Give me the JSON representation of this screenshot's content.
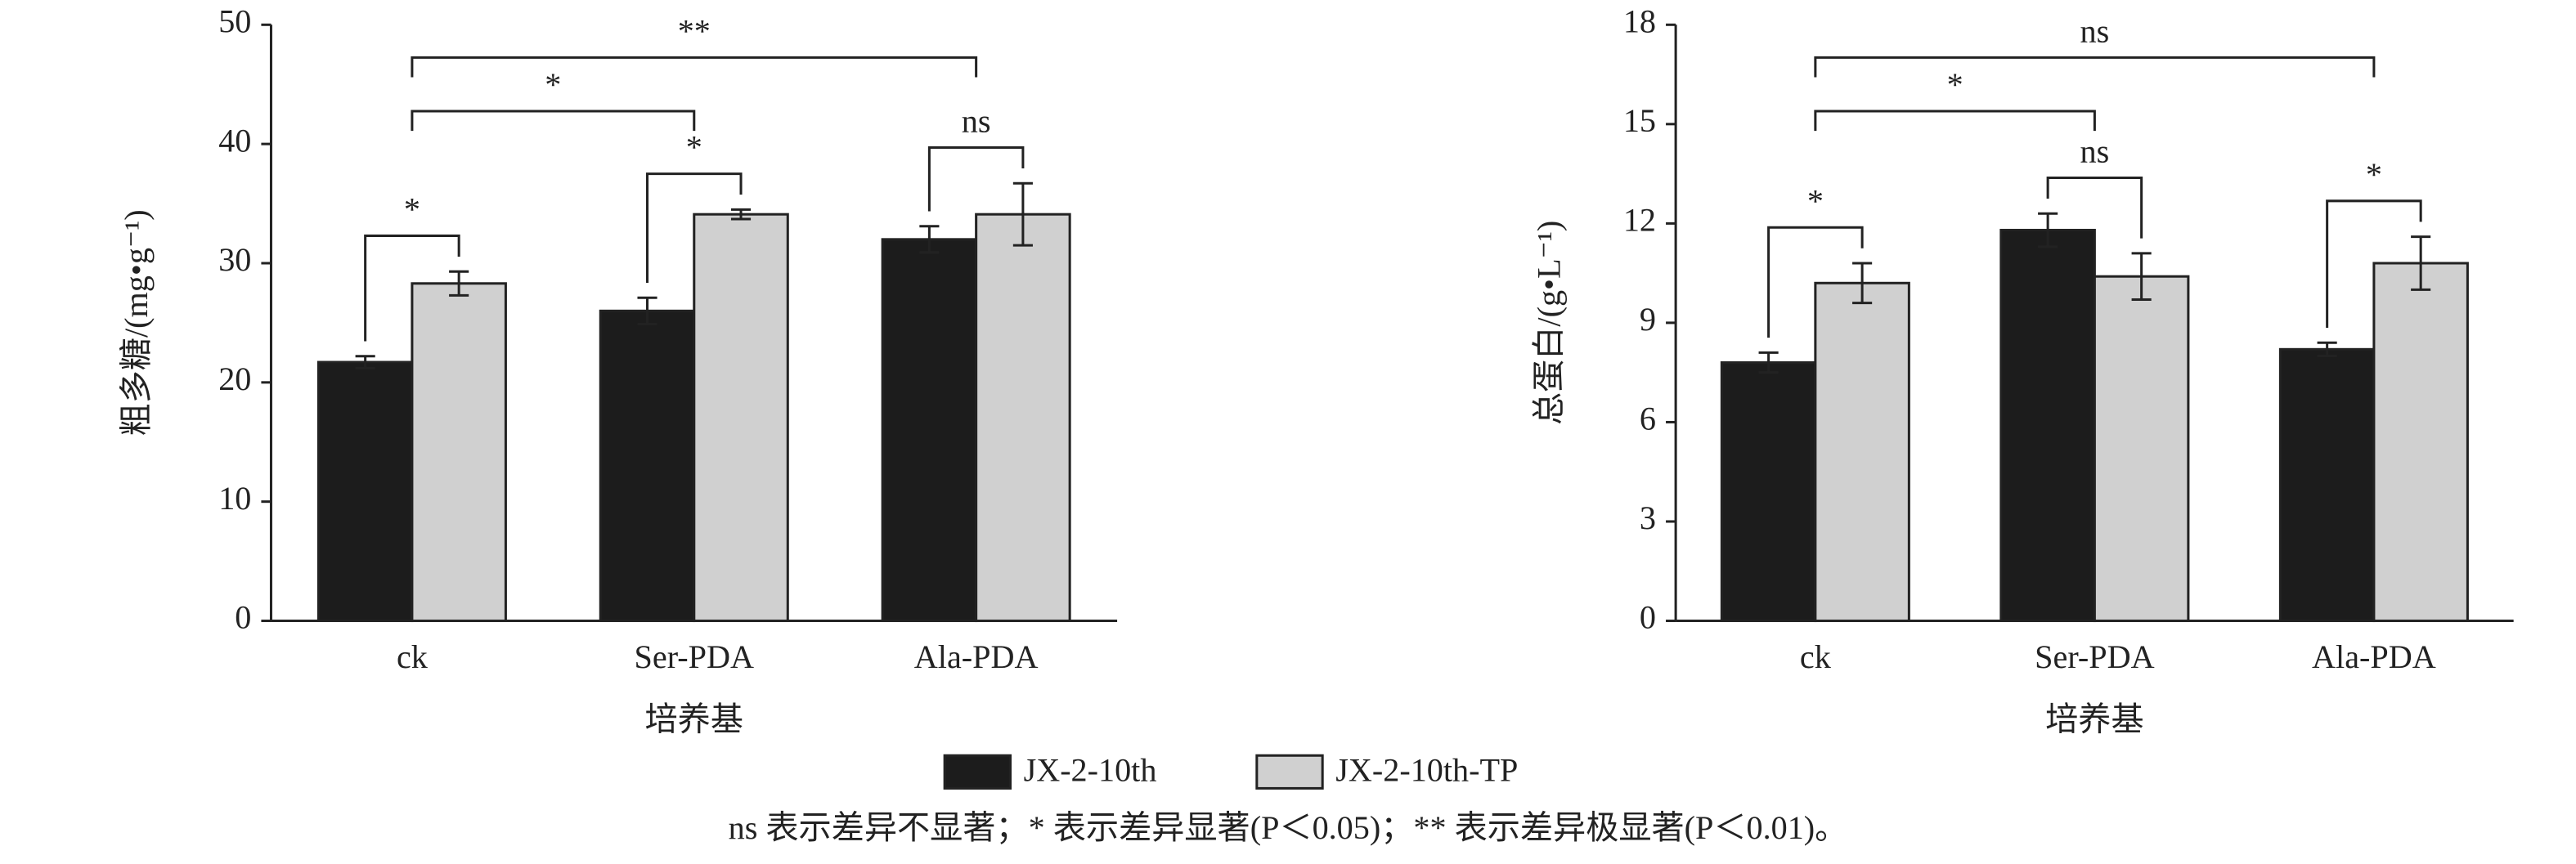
{
  "legend": {
    "entries": [
      {
        "name": "JX-2-10th",
        "color": "#1c1c1c"
      },
      {
        "name": "JX-2-10th-TP",
        "color": "#d0d0d0"
      }
    ]
  },
  "note": "ns 表示差异不显著；* 表示差异显著(P＜0.05)；** 表示差异极显著(P＜0.01)。",
  "chart_data": [
    {
      "type": "bar",
      "y_label": "粗多糖/(mg•g⁻¹)",
      "x_label": "培养基",
      "categories": [
        "ck",
        "Ser-PDA",
        "Ala-PDA"
      ],
      "series": [
        {
          "color": "#1c1c1c",
          "values": [
            21.7,
            26,
            32
          ],
          "errors": [
            0.5,
            1.1,
            1.1
          ]
        },
        {
          "color": "#d0d0d0",
          "values": [
            28.3,
            34.1,
            34.1
          ],
          "errors": [
            1,
            0.4,
            2.6
          ]
        }
      ],
      "ylim": [
        0,
        50
      ],
      "yticks": [
        0,
        10,
        20,
        30,
        40,
        50
      ],
      "annotations": [
        {
          "label": "*",
          "from": {
            "category": 0,
            "series": 0
          },
          "to": {
            "category": 0,
            "series": 1
          }
        },
        {
          "label": "*",
          "from": {
            "category": 1,
            "series": 0
          },
          "to": {
            "category": 1,
            "series": 1
          }
        },
        {
          "label": "ns",
          "from": {
            "category": 2,
            "series": 0
          },
          "to": {
            "category": 2,
            "series": 1
          }
        },
        {
          "label": "*",
          "from": {
            "category": 0
          },
          "to": {
            "category": 1
          }
        },
        {
          "label": "**",
          "from": {
            "category": 0
          },
          "to": {
            "category": 2
          }
        }
      ]
    },
    {
      "type": "bar",
      "y_label": "总蛋白/(g•L⁻¹)",
      "x_label": "培养基",
      "categories": [
        "ck",
        "Ser-PDA",
        "Ala-PDA"
      ],
      "series": [
        {
          "color": "#1c1c1c",
          "values": [
            7.8,
            11.8,
            8.2
          ],
          "errors": [
            0.3,
            0.5,
            0.2
          ]
        },
        {
          "color": "#d0d0d0",
          "values": [
            10.2,
            10.4,
            10.8
          ],
          "errors": [
            0.6,
            0.7,
            0.8
          ]
        }
      ],
      "ylim": [
        0,
        18
      ],
      "yticks": [
        0,
        3,
        6,
        9,
        12,
        15,
        18
      ],
      "annotations": [
        {
          "label": "*",
          "from": {
            "category": 0,
            "series": 0
          },
          "to": {
            "category": 0,
            "series": 1
          }
        },
        {
          "label": "ns",
          "from": {
            "category": 1,
            "series": 0
          },
          "to": {
            "category": 1,
            "series": 1
          }
        },
        {
          "label": "*",
          "from": {
            "category": 2,
            "series": 0
          },
          "to": {
            "category": 2,
            "series": 1
          }
        },
        {
          "label": "*",
          "from": {
            "category": 0
          },
          "to": {
            "category": 1
          }
        },
        {
          "label": "ns",
          "from": {
            "category": 0
          },
          "to": {
            "category": 2
          }
        }
      ]
    }
  ]
}
